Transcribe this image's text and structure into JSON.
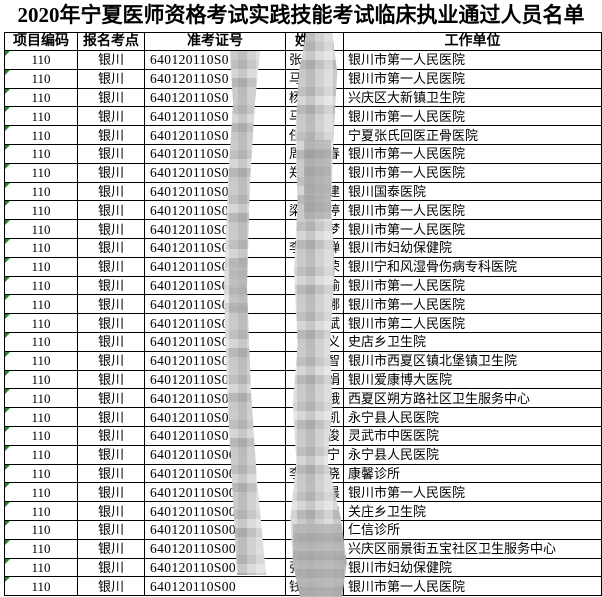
{
  "title": "2020年宁夏医师资格考试实践技能考试临床执业通过人员名单",
  "colors": {
    "text": "#000000",
    "border": "#000000",
    "error_indicator_green": "#1e8c1e",
    "redaction_gray_light": "#d6d6d6",
    "redaction_gray_dark": "#9a9a9a"
  },
  "redaction": {
    "style": "pixelated-mosaic",
    "areas": [
      "ticket-number-suffix",
      "name-middle-characters"
    ]
  },
  "table": {
    "headers": [
      "项目编码",
      "报名考点",
      "准考证号",
      "姓",
      "工作单位"
    ],
    "rows": [
      {
        "code": "110",
        "site": "银川",
        "ticket": "640120110S0",
        "name_pre": "张",
        "name_post": "",
        "unit": "银川市第一人民医院"
      },
      {
        "code": "110",
        "site": "银川",
        "ticket": "640120110S0",
        "name_pre": "马",
        "name_post": "",
        "unit": "银川市第一人民医院"
      },
      {
        "code": "110",
        "site": "银川",
        "ticket": "640120110S0",
        "name_pre": "杨",
        "name_post": "",
        "unit": "兴庆区大新镇卫生院"
      },
      {
        "code": "110",
        "site": "银川",
        "ticket": "640120110S0",
        "name_pre": "马",
        "name_post": "",
        "unit": "银川市第一人民医院"
      },
      {
        "code": "110",
        "site": "银川",
        "ticket": "640120110S0",
        "name_pre": "任",
        "name_post": "",
        "unit": "宁夏张氏回医正骨医院"
      },
      {
        "code": "110",
        "site": "银川",
        "ticket": "640120110S0",
        "name_pre": "周",
        "name_post": "春",
        "unit": "银川市第一人民医院"
      },
      {
        "code": "110",
        "site": "银川",
        "ticket": "640120110S0",
        "name_pre": "郑",
        "name_post": "",
        "unit": "银川市第一人民医院"
      },
      {
        "code": "110",
        "site": "银川",
        "ticket": "640120110S0",
        "name_pre": "",
        "name_post": "建",
        "unit": "银川国泰医院"
      },
      {
        "code": "110",
        "site": "银川",
        "ticket": "640120110S0",
        "name_pre": "梁",
        "name_post": "婷",
        "unit": "银川市第一人民医院"
      },
      {
        "code": "110",
        "site": "银川",
        "ticket": "640120110S0",
        "name_pre": "",
        "name_post": "梦",
        "unit": "银川市第一人民医院"
      },
      {
        "code": "110",
        "site": "银川",
        "ticket": "640120110S0",
        "name_pre": "李",
        "name_post": "婵",
        "unit": "银川市妇幼保健院"
      },
      {
        "code": "110",
        "site": "银川",
        "ticket": "640120110S0",
        "name_pre": "",
        "name_post": "荣",
        "unit": "银川宁和风湿骨伤病专科医院"
      },
      {
        "code": "110",
        "site": "银川",
        "ticket": "640120110S0",
        "name_pre": "",
        "name_post": "瑜",
        "unit": "银川市第一人民医院"
      },
      {
        "code": "110",
        "site": "银川",
        "ticket": "640120110S0",
        "name_pre": "",
        "name_post": "娜",
        "unit": "银川市第一人民医院"
      },
      {
        "code": "110",
        "site": "银川",
        "ticket": "640120110S0",
        "name_pre": "",
        "name_post": "斌",
        "unit": "银川市第二人民医院"
      },
      {
        "code": "110",
        "site": "银川",
        "ticket": "640120110S0",
        "name_pre": "",
        "name_post": "义",
        "unit": "史店乡卫生院"
      },
      {
        "code": "110",
        "site": "银川",
        "ticket": "640120110S0",
        "name_pre": "",
        "name_post": "智",
        "unit": "银川市西夏区镇北堡镇卫生院"
      },
      {
        "code": "110",
        "site": "银川",
        "ticket": "640120110S0",
        "name_pre": "",
        "name_post": "娟",
        "unit": "银川爱康博大医院"
      },
      {
        "code": "110",
        "site": "银川",
        "ticket": "640120110S0",
        "name_pre": "",
        "name_post": "娥",
        "unit": "西夏区朔方路社区卫生服务中心"
      },
      {
        "code": "110",
        "site": "银川",
        "ticket": "640120110S0",
        "name_pre": "",
        "name_post": "凯",
        "unit": "永宁县人民医院"
      },
      {
        "code": "110",
        "site": "银川",
        "ticket": "640120110S0",
        "name_pre": "",
        "name_post": "俊",
        "unit": "灵武市中医医院"
      },
      {
        "code": "110",
        "site": "银川",
        "ticket": "640120110S00",
        "name_pre": "",
        "name_post": "宁",
        "unit": "永宁县人民医院"
      },
      {
        "code": "110",
        "site": "银川",
        "ticket": "640120110S00",
        "name_pre": "李",
        "name_post": "晓",
        "unit": "康馨诊所"
      },
      {
        "code": "110",
        "site": "银川",
        "ticket": "640120110S00",
        "name_pre": "",
        "name_post": "晨",
        "unit": "银川市第一人民医院"
      },
      {
        "code": "110",
        "site": "银川",
        "ticket": "640120110S00",
        "name_pre": "",
        "name_post": "虎",
        "unit": "关庄乡卫生院"
      },
      {
        "code": "110",
        "site": "银川",
        "ticket": "640120110S00",
        "name_pre": "",
        "name_post": "杨",
        "unit": "仁信诊所"
      },
      {
        "code": "110",
        "site": "银川",
        "ticket": "640120110S00",
        "name_pre": "卜",
        "name_post": "玲",
        "unit": "兴庆区丽景街五宝社区卫生服务中心"
      },
      {
        "code": "110",
        "site": "银川",
        "ticket": "640120110S00",
        "name_pre": "张",
        "name_post": "",
        "unit": "银川市妇幼保健院"
      },
      {
        "code": "110",
        "site": "银川",
        "ticket": "640120110S00",
        "name_pre": "钱",
        "name_post": "",
        "unit": "银川市第一人民医院"
      }
    ]
  }
}
